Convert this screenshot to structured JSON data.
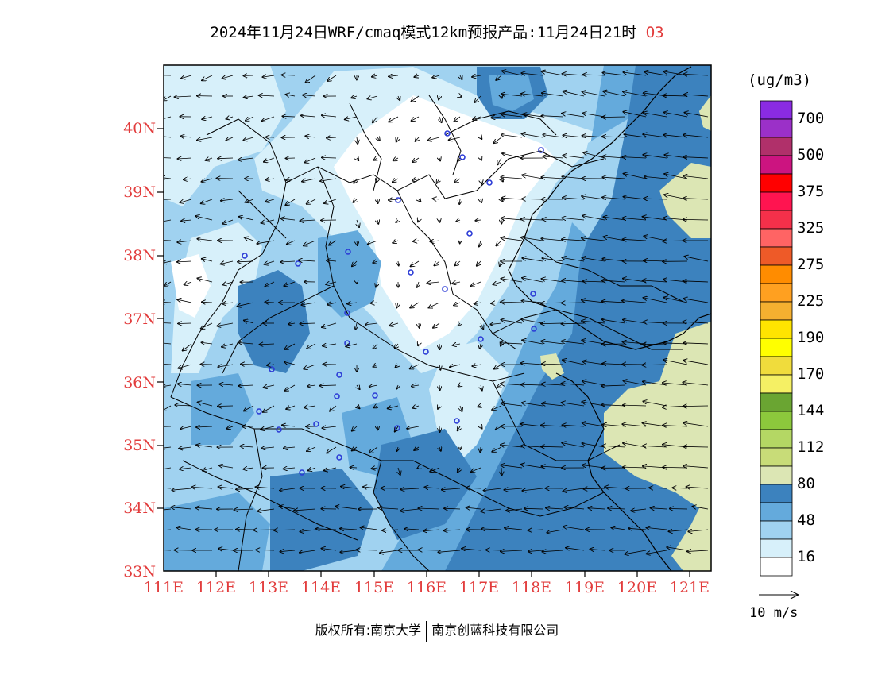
{
  "header": {
    "title": "2024年11月24日WRF/cmaq模式12km预报产品:11月24日21时",
    "species": "O3"
  },
  "map": {
    "lat_labels": [
      "40N",
      "39N",
      "38N",
      "37N",
      "36N",
      "35N",
      "34N",
      "33N"
    ],
    "lon_labels": [
      "111E",
      "112E",
      "113E",
      "114E",
      "115E",
      "116E",
      "117E",
      "118E",
      "119E",
      "120E",
      "121E"
    ],
    "lat_range": [
      33,
      41
    ],
    "lon_range": [
      111,
      121.4
    ]
  },
  "legend": {
    "unit": "(ug/m3)",
    "levels": [
      {
        "label": "700",
        "color": "#8a2be2"
      },
      {
        "label": "",
        "color": "#9b30c8"
      },
      {
        "label": "500",
        "color": "#b0306a"
      },
      {
        "label": "",
        "color": "#cc1480"
      },
      {
        "label": "375",
        "color": "#ff0000"
      },
      {
        "label": "",
        "color": "#ff1450"
      },
      {
        "label": "325",
        "color": "#f5304a"
      },
      {
        "label": "",
        "color": "#ff6464"
      },
      {
        "label": "275",
        "color": "#ee5a28"
      },
      {
        "label": "",
        "color": "#ff8c00"
      },
      {
        "label": "225",
        "color": "#ffa020"
      },
      {
        "label": "",
        "color": "#f5b030"
      },
      {
        "label": "190",
        "color": "#ffe400"
      },
      {
        "label": "",
        "color": "#ffff00"
      },
      {
        "label": "170",
        "color": "#f0dc3c"
      },
      {
        "label": "",
        "color": "#f5f064"
      },
      {
        "label": "144",
        "color": "#6aa532"
      },
      {
        "label": "",
        "color": "#8cc83c"
      },
      {
        "label": "112",
        "color": "#b4d764"
      },
      {
        "label": "",
        "color": "#c8dc78"
      },
      {
        "label": "80",
        "color": "#dce6b4"
      },
      {
        "label": "",
        "color": "#3c82be"
      },
      {
        "label": "48",
        "color": "#64aadc"
      },
      {
        "label": "",
        "color": "#a0d2f0"
      },
      {
        "label": "16",
        "color": "#d7f0fa"
      },
      {
        "label": "",
        "color": "#ffffff"
      }
    ]
  },
  "wind_reference": {
    "label": "10 m/s"
  },
  "footer": {
    "copyright": "版权所有:南京大学",
    "company": "南京创蓝科技有限公司"
  }
}
